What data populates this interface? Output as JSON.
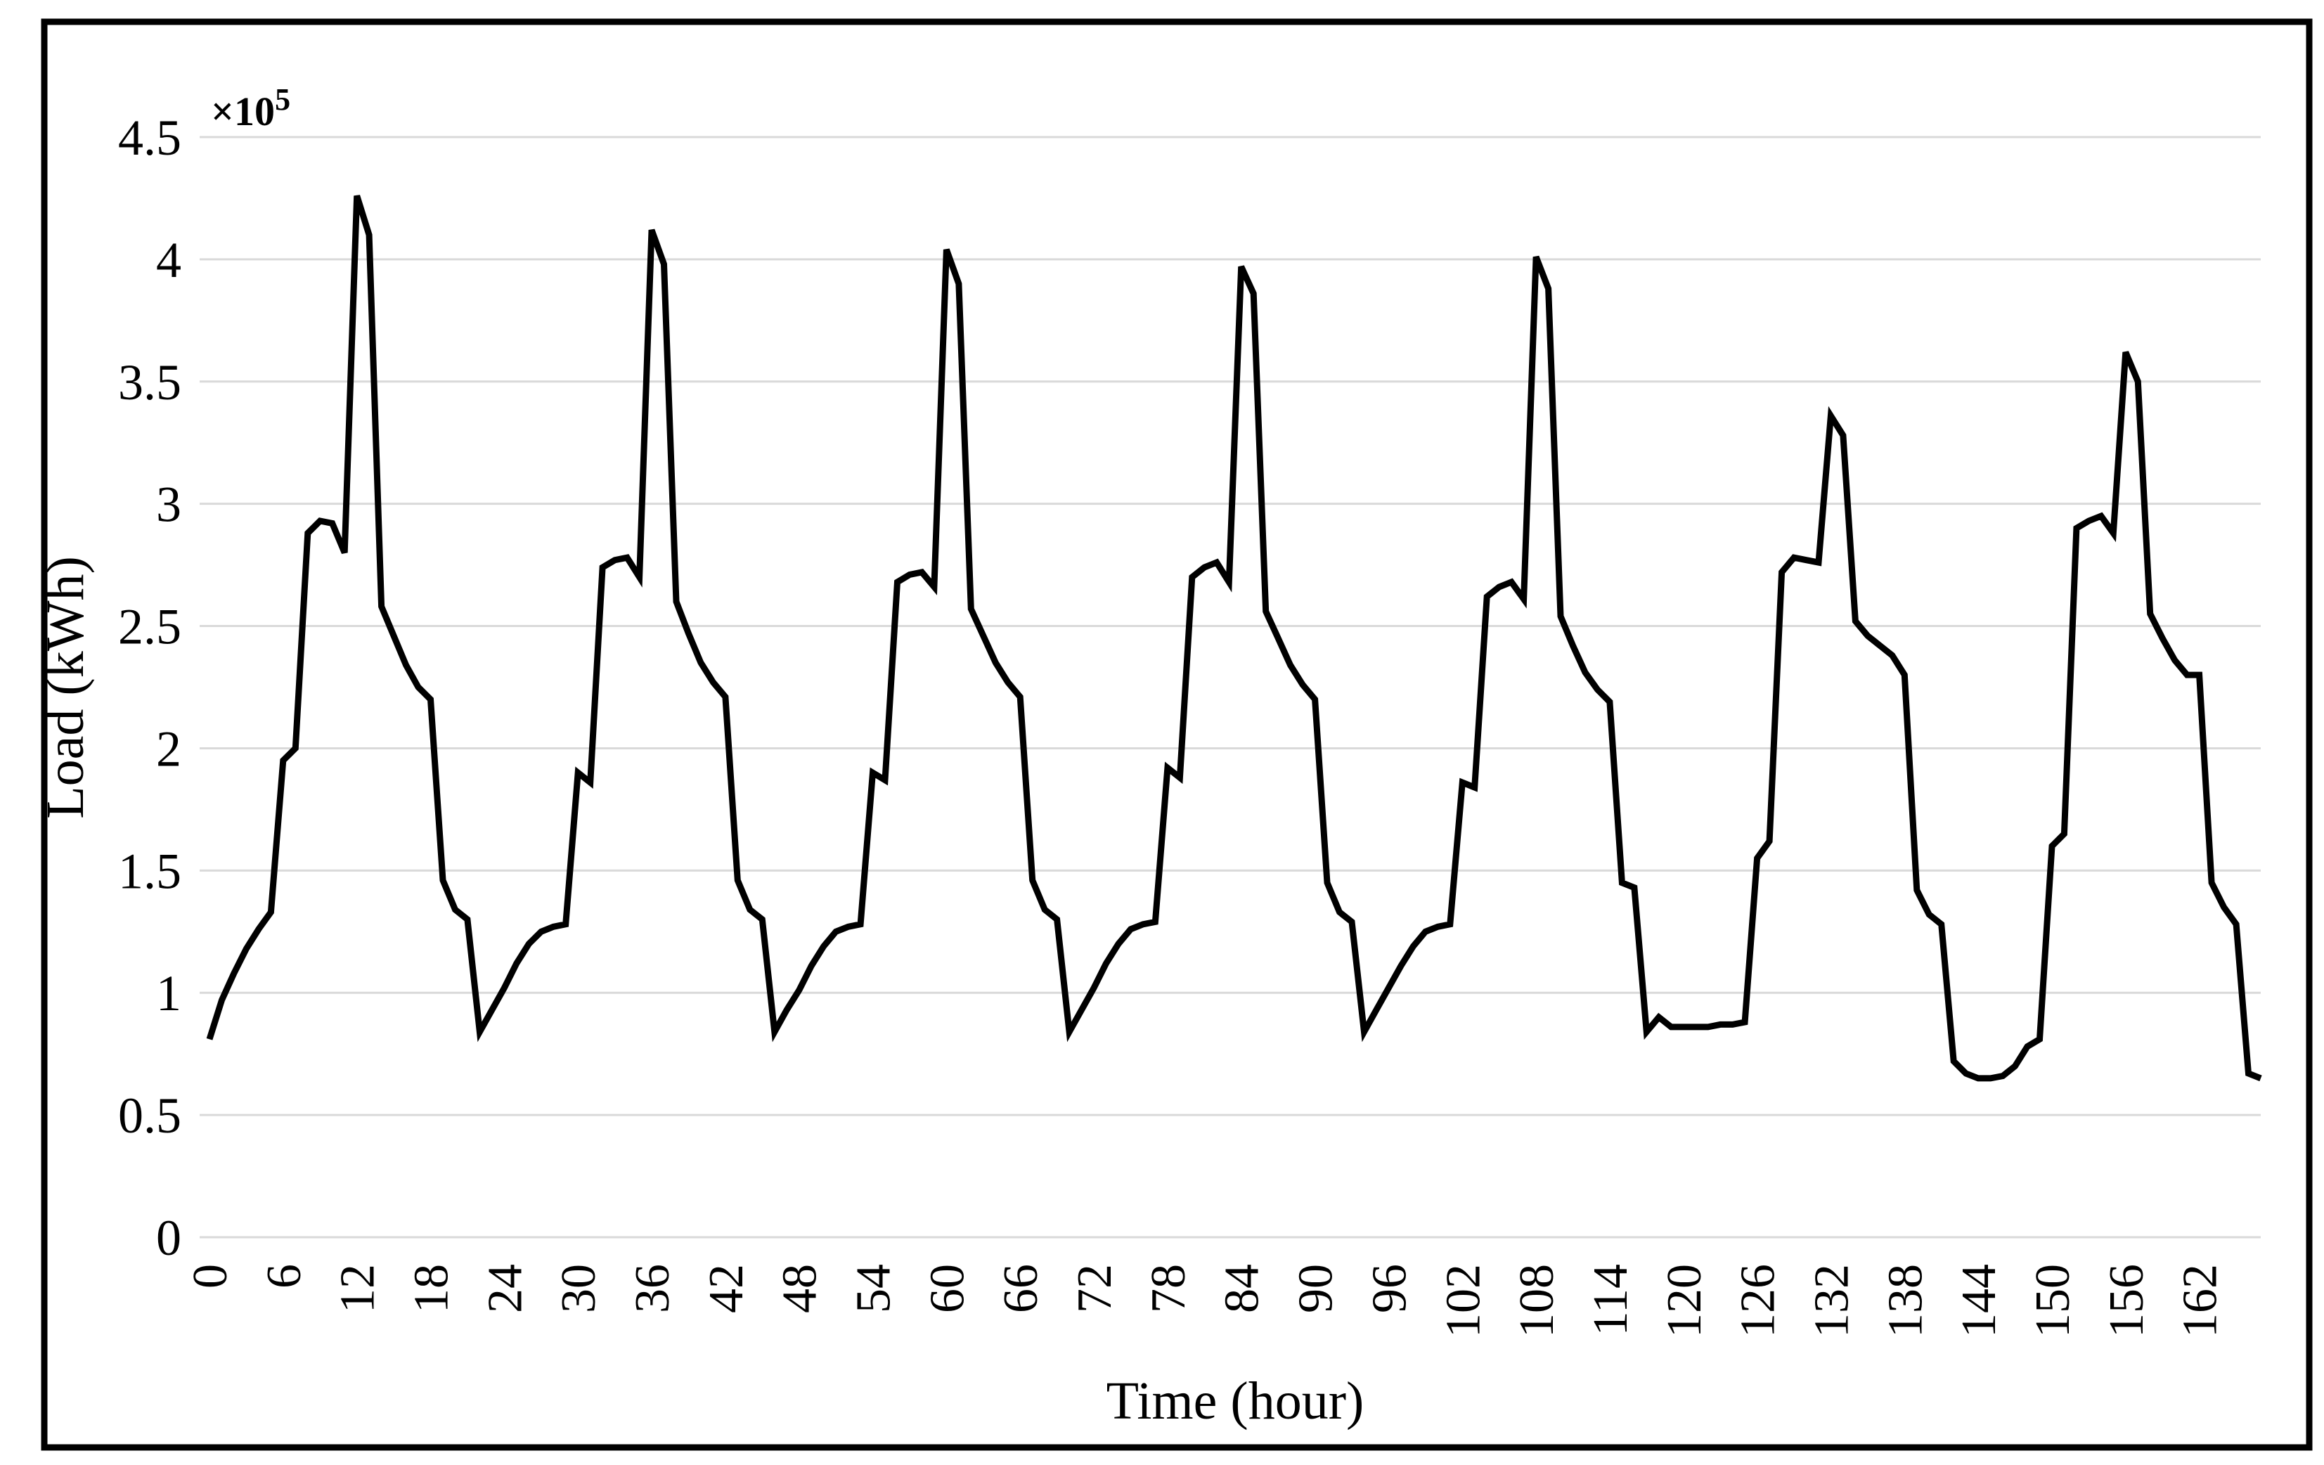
{
  "chart_data": {
    "type": "line",
    "title": "",
    "xlabel": "Time (hour)",
    "ylabel": "Load (kWh)",
    "y_scale_base": "×10",
    "y_scale_exponent": "5",
    "xlim": [
      0,
      167
    ],
    "ylim": [
      0,
      4.5
    ],
    "x_ticks": [
      0,
      6,
      12,
      18,
      24,
      30,
      36,
      42,
      48,
      54,
      60,
      66,
      72,
      78,
      84,
      90,
      96,
      102,
      108,
      114,
      120,
      126,
      132,
      138,
      144,
      150,
      156,
      162
    ],
    "y_ticks": [
      0,
      0.5,
      1,
      1.5,
      2,
      2.5,
      3,
      3.5,
      4,
      4.5
    ],
    "y_tick_labels": [
      "0",
      "0.5",
      "1",
      "1.5",
      "2",
      "2.5",
      "3",
      "3.5",
      "4",
      "4.5"
    ],
    "grid": "horizontal",
    "legend": "none",
    "line_color": "#000000",
    "grid_color": "#d9d9d9",
    "frame_color": "#000000",
    "x_first_hour": 0,
    "x_interval_hours": 1,
    "series": [
      {
        "name": "Load",
        "values": [
          0.81,
          0.97,
          1.08,
          1.18,
          1.26,
          1.33,
          1.95,
          2.0,
          2.88,
          2.93,
          2.92,
          2.8,
          4.26,
          4.1,
          2.58,
          2.46,
          2.34,
          2.25,
          2.2,
          1.46,
          1.34,
          1.3,
          0.84,
          0.93,
          1.02,
          1.12,
          1.2,
          1.25,
          1.27,
          1.28,
          1.9,
          1.86,
          2.74,
          2.77,
          2.78,
          2.7,
          4.12,
          3.98,
          2.6,
          2.47,
          2.35,
          2.27,
          2.21,
          1.46,
          1.34,
          1.3,
          0.84,
          0.93,
          1.01,
          1.11,
          1.19,
          1.25,
          1.27,
          1.28,
          1.9,
          1.87,
          2.68,
          2.71,
          2.72,
          2.66,
          4.04,
          3.9,
          2.57,
          2.46,
          2.35,
          2.27,
          2.21,
          1.46,
          1.34,
          1.3,
          0.84,
          0.93,
          1.02,
          1.12,
          1.2,
          1.26,
          1.28,
          1.29,
          1.92,
          1.88,
          2.7,
          2.74,
          2.76,
          2.68,
          3.97,
          3.86,
          2.56,
          2.45,
          2.34,
          2.26,
          2.2,
          1.45,
          1.33,
          1.29,
          0.84,
          0.93,
          1.02,
          1.11,
          1.19,
          1.25,
          1.27,
          1.28,
          1.86,
          1.84,
          2.62,
          2.66,
          2.68,
          2.61,
          4.01,
          3.88,
          2.54,
          2.42,
          2.31,
          2.24,
          2.19,
          1.45,
          1.43,
          0.84,
          0.9,
          0.86,
          0.86,
          0.86,
          0.86,
          0.87,
          0.87,
          0.88,
          1.55,
          1.62,
          2.72,
          2.78,
          2.77,
          2.76,
          3.36,
          3.28,
          2.52,
          2.46,
          2.42,
          2.38,
          2.3,
          1.42,
          1.32,
          1.28,
          0.72,
          0.67,
          0.65,
          0.65,
          0.66,
          0.7,
          0.78,
          0.81,
          1.6,
          1.65,
          2.9,
          2.93,
          2.95,
          2.88,
          3.62,
          3.5,
          2.55,
          2.45,
          2.36,
          2.3,
          2.3,
          1.45,
          1.35,
          1.28,
          0.67,
          0.65
        ]
      }
    ]
  }
}
